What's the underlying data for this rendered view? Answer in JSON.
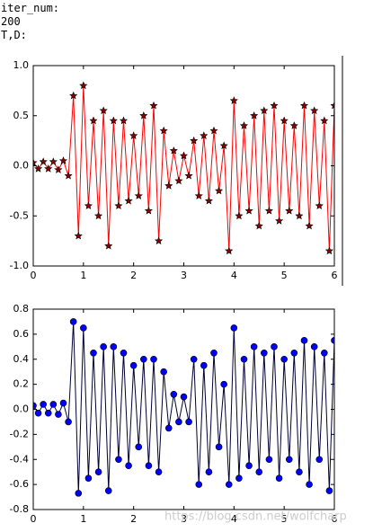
{
  "output_lines": [
    "iter_num:",
    "200",
    "T,D:"
  ],
  "watermark": "https://blog.csdn.net/wolfcharp",
  "chart_data": [
    {
      "type": "line",
      "marker": "star",
      "color": "#ff0000",
      "marker_color": "#8b0000",
      "x": [
        0,
        0.1,
        0.2,
        0.3,
        0.4,
        0.5,
        0.6,
        0.7,
        0.8,
        0.9,
        1,
        1.1,
        1.2,
        1.3,
        1.4,
        1.5,
        1.6,
        1.7,
        1.8,
        1.9,
        2,
        2.1,
        2.2,
        2.3,
        2.4,
        2.5,
        2.6,
        2.7,
        2.8,
        2.9,
        3,
        3.1,
        3.2,
        3.3,
        3.4,
        3.5,
        3.6,
        3.7,
        3.8,
        3.9,
        4,
        4.1,
        4.2,
        4.3,
        4.4,
        4.5,
        4.6,
        4.7,
        4.8,
        4.9,
        5,
        5.1,
        5.2,
        5.3,
        5.4,
        5.5,
        5.6,
        5.7,
        5.8,
        5.9,
        6
      ],
      "values": [
        0.03,
        -0.03,
        0.04,
        -0.03,
        0.04,
        -0.04,
        0.05,
        -0.1,
        0.7,
        -0.7,
        0.8,
        -0.4,
        0.45,
        -0.5,
        0.55,
        -0.8,
        0.45,
        -0.4,
        0.45,
        -0.35,
        0.3,
        -0.3,
        0.5,
        -0.45,
        0.6,
        -0.75,
        0.35,
        -0.2,
        0.15,
        -0.15,
        0.1,
        -0.1,
        0.25,
        -0.3,
        0.3,
        -0.35,
        0.35,
        -0.25,
        0.2,
        -0.85,
        0.65,
        -0.5,
        0.4,
        -0.45,
        0.5,
        -0.6,
        0.55,
        -0.45,
        0.6,
        -0.55,
        0.45,
        -0.45,
        0.4,
        -0.5,
        0.6,
        -0.6,
        0.55,
        -0.4,
        0.45,
        -0.85,
        0.6
      ],
      "xlim": [
        0,
        6
      ],
      "xticks": [
        0,
        1,
        2,
        3,
        4,
        5,
        6
      ],
      "ylim": [
        -1,
        1
      ],
      "yticks": [
        {
          "value": -1,
          "label": "-1.0"
        },
        -0.5,
        {
          "value": 0,
          "label": "0.0"
        },
        0.5,
        {
          "value": 1,
          "label": "1.0"
        }
      ]
    },
    {
      "type": "line",
      "marker": "circle",
      "color": "#000033",
      "marker_color": "#0000ff",
      "x": [
        0,
        0.1,
        0.2,
        0.3,
        0.4,
        0.5,
        0.6,
        0.7,
        0.8,
        0.9,
        1,
        1.1,
        1.2,
        1.3,
        1.4,
        1.5,
        1.6,
        1.7,
        1.8,
        1.9,
        2,
        2.1,
        2.2,
        2.3,
        2.4,
        2.5,
        2.6,
        2.7,
        2.8,
        2.9,
        3,
        3.1,
        3.2,
        3.3,
        3.4,
        3.5,
        3.6,
        3.7,
        3.8,
        3.9,
        4,
        4.1,
        4.2,
        4.3,
        4.4,
        4.5,
        4.6,
        4.7,
        4.8,
        4.9,
        5,
        5.1,
        5.2,
        5.3,
        5.4,
        5.5,
        5.6,
        5.7,
        5.8,
        5.9,
        6
      ],
      "values": [
        0.03,
        -0.03,
        0.04,
        -0.03,
        0.04,
        -0.04,
        0.05,
        -0.1,
        0.7,
        -0.67,
        0.65,
        -0.55,
        0.45,
        -0.5,
        0.5,
        -0.65,
        0.5,
        -0.4,
        0.45,
        -0.45,
        0.35,
        -0.3,
        0.4,
        -0.45,
        0.4,
        -0.5,
        0.3,
        -0.15,
        0.12,
        -0.1,
        0.1,
        -0.1,
        0.4,
        -0.6,
        0.35,
        -0.5,
        0.45,
        -0.3,
        0.2,
        -0.6,
        0.65,
        -0.55,
        0.4,
        -0.45,
        0.5,
        -0.5,
        0.45,
        -0.4,
        0.5,
        -0.55,
        0.4,
        -0.4,
        0.45,
        -0.5,
        0.55,
        -0.6,
        0.5,
        -0.4,
        0.45,
        -0.65,
        0.55
      ],
      "xlim": [
        0,
        6
      ],
      "xticks": [
        0,
        1,
        2,
        3,
        4,
        5,
        6
      ],
      "ylim": [
        -0.8,
        0.8
      ],
      "yticks": [
        -0.8,
        -0.6,
        -0.4,
        -0.2,
        {
          "value": 0,
          "label": "0.0"
        },
        0.2,
        0.4,
        0.6,
        0.8
      ]
    }
  ]
}
